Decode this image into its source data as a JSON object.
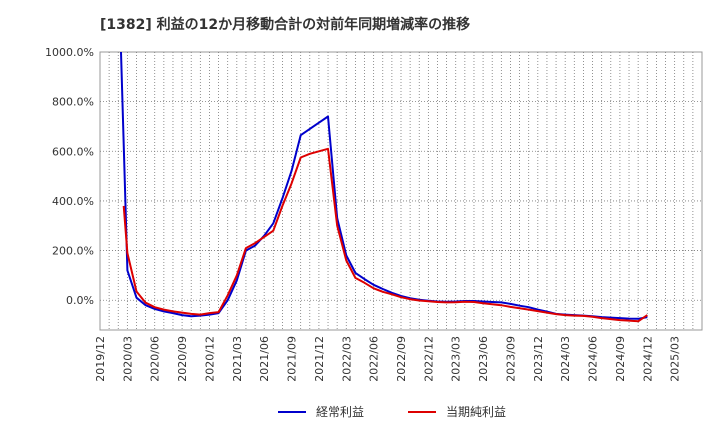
{
  "chart_data": {
    "type": "line",
    "title": "[1382]  利益の12か月移動合計の対前年同期増減率の推移",
    "xlabel": "",
    "ylabel": "",
    "ylim": [
      -120,
      1000
    ],
    "yticks": [
      {
        "value": 0,
        "label": "0.0%"
      },
      {
        "value": 200,
        "label": "200.0%"
      },
      {
        "value": 400,
        "label": "400.0%"
      },
      {
        "value": 600,
        "label": "600.0%"
      },
      {
        "value": 800,
        "label": "800.0%"
      },
      {
        "value": 1000,
        "label": "1000.0%"
      }
    ],
    "xlim_months": [
      0,
      66
    ],
    "xticks": [
      {
        "value": 0,
        "label": "2019/12"
      },
      {
        "value": 3,
        "label": "2020/03"
      },
      {
        "value": 6,
        "label": "2020/06"
      },
      {
        "value": 9,
        "label": "2020/09"
      },
      {
        "value": 12,
        "label": "2020/12"
      },
      {
        "value": 15,
        "label": "2021/03"
      },
      {
        "value": 18,
        "label": "2021/06"
      },
      {
        "value": 21,
        "label": "2021/09"
      },
      {
        "value": 24,
        "label": "2021/12"
      },
      {
        "value": 27,
        "label": "2022/03"
      },
      {
        "value": 30,
        "label": "2022/06"
      },
      {
        "value": 33,
        "label": "2022/09"
      },
      {
        "value": 36,
        "label": "2022/12"
      },
      {
        "value": 39,
        "label": "2023/03"
      },
      {
        "value": 42,
        "label": "2023/06"
      },
      {
        "value": 45,
        "label": "2023/09"
      },
      {
        "value": 48,
        "label": "2023/12"
      },
      {
        "value": 51,
        "label": "2024/03"
      },
      {
        "value": 54,
        "label": "2024/06"
      },
      {
        "value": 57,
        "label": "2024/09"
      },
      {
        "value": 60,
        "label": "2024/12"
      },
      {
        "value": 63,
        "label": "2025/03"
      }
    ],
    "grid": true,
    "legend_position": "bottom",
    "series": [
      {
        "name": "経常利益",
        "color": "#0000cc",
        "x": [
          2.3,
          3,
          4,
          5,
          6,
          7,
          8,
          9,
          10,
          11,
          12,
          13,
          14,
          15,
          16,
          17,
          18,
          19,
          20,
          21,
          22,
          23,
          24,
          25,
          26,
          27,
          28,
          29,
          30,
          31,
          32,
          33,
          34,
          35,
          36,
          37,
          38,
          39,
          40,
          41,
          42,
          43,
          44,
          45,
          46,
          47,
          48,
          49,
          50,
          51,
          52,
          53,
          54,
          55,
          56,
          57,
          58,
          59,
          60
        ],
        "values": [
          1000,
          120,
          10,
          -20,
          -35,
          -45,
          -52,
          -60,
          -65,
          -62,
          -58,
          -52,
          0,
          80,
          200,
          220,
          260,
          310,
          410,
          520,
          665,
          690,
          715,
          740,
          330,
          180,
          110,
          85,
          62,
          45,
          30,
          17,
          8,
          2,
          -2,
          -5,
          -6,
          -5,
          -3,
          -3,
          -5,
          -7,
          -9,
          -15,
          -22,
          -28,
          -38,
          -46,
          -55,
          -58,
          -60,
          -62,
          -65,
          -68,
          -70,
          -72,
          -74,
          -75,
          -68
        ]
      },
      {
        "name": "当期純利益",
        "color": "#dd0000",
        "x": [
          2.6,
          3,
          4,
          5,
          6,
          7,
          8,
          9,
          10,
          11,
          12,
          13,
          14,
          15,
          16,
          17,
          18,
          19,
          20,
          21,
          22,
          23,
          24,
          25,
          26,
          27,
          28,
          29,
          30,
          31,
          32,
          33,
          34,
          35,
          36,
          37,
          38,
          39,
          40,
          41,
          42,
          43,
          44,
          45,
          46,
          47,
          48,
          49,
          50,
          51,
          52,
          53,
          54,
          55,
          56,
          57,
          58,
          59,
          60
        ],
        "values": [
          380,
          190,
          35,
          -10,
          -28,
          -38,
          -45,
          -50,
          -55,
          -58,
          -52,
          -48,
          20,
          100,
          210,
          230,
          255,
          280,
          380,
          470,
          575,
          590,
          600,
          610,
          300,
          160,
          90,
          70,
          48,
          34,
          24,
          12,
          4,
          -1,
          -4,
          -7,
          -9,
          -8,
          -6,
          -7,
          -12,
          -16,
          -20,
          -27,
          -32,
          -38,
          -44,
          -50,
          -56,
          -60,
          -62,
          -63,
          -67,
          -72,
          -76,
          -80,
          -82,
          -85,
          -60
        ]
      }
    ]
  }
}
